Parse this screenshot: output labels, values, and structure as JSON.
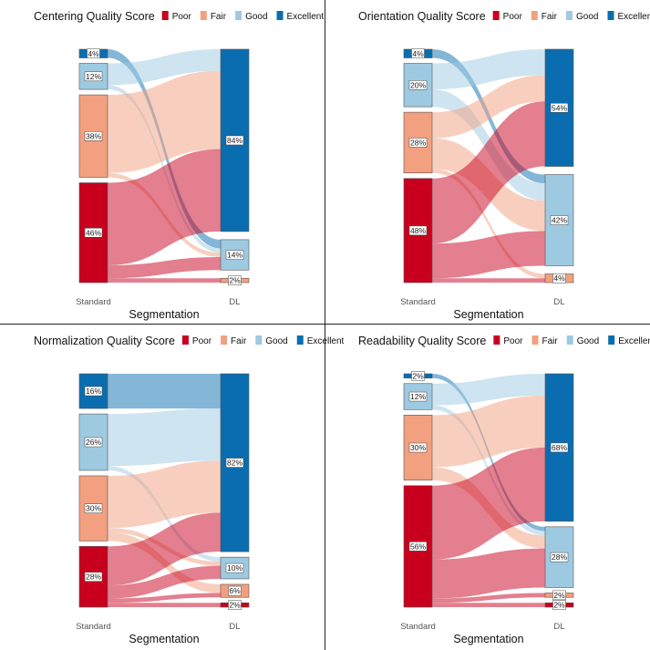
{
  "colors": {
    "Poor": "#c8001e",
    "Fair": "#f2a07f",
    "Good": "#9ecae1",
    "Excellent": "#0a6db0"
  },
  "chart_data": [
    {
      "type": "sankey",
      "title": "Centering Quality Score",
      "legend": [
        "Poor",
        "Fair",
        "Good",
        "Excellent"
      ],
      "left_axis_label": "Standard",
      "right_axis_label": "DL",
      "xlabel": "Segmentation",
      "left_nodes": [
        {
          "cat": "Excellent",
          "label": "4%"
        },
        {
          "cat": "Good",
          "label": "12%"
        },
        {
          "cat": "Fair",
          "label": "38%"
        },
        {
          "cat": "Poor",
          "label": "46%"
        }
      ],
      "right_nodes": [
        {
          "cat": "Excellent",
          "label": "84%"
        },
        {
          "cat": "Good",
          "label": "14%"
        },
        {
          "cat": "Fair",
          "label": "2%"
        }
      ],
      "links": [
        [
          "Excellent",
          "Good",
          4
        ],
        [
          "Good",
          "Excellent",
          10
        ],
        [
          "Good",
          "Good",
          2
        ],
        [
          "Fair",
          "Excellent",
          36
        ],
        [
          "Fair",
          "Good",
          2
        ],
        [
          "Poor",
          "Excellent",
          38
        ],
        [
          "Poor",
          "Good",
          6
        ],
        [
          "Poor",
          "Fair",
          2
        ]
      ]
    },
    {
      "type": "sankey",
      "title": "Orientation Quality Score",
      "legend": [
        "Poor",
        "Fair",
        "Good",
        "Excellent"
      ],
      "left_axis_label": "Standard",
      "right_axis_label": "DL",
      "xlabel": "Segmentation",
      "left_nodes": [
        {
          "cat": "Excellent",
          "label": "4%"
        },
        {
          "cat": "Good",
          "label": "20%"
        },
        {
          "cat": "Fair",
          "label": "28%"
        },
        {
          "cat": "Poor",
          "label": "48%"
        }
      ],
      "right_nodes": [
        {
          "cat": "Excellent",
          "label": "54%"
        },
        {
          "cat": "Good",
          "label": "42%"
        },
        {
          "cat": "Fair",
          "label": "4%"
        }
      ],
      "links": [
        [
          "Excellent",
          "Good",
          4
        ],
        [
          "Good",
          "Excellent",
          12
        ],
        [
          "Good",
          "Good",
          8
        ],
        [
          "Fair",
          "Excellent",
          12
        ],
        [
          "Fair",
          "Good",
          14
        ],
        [
          "Fair",
          "Fair",
          2
        ],
        [
          "Poor",
          "Excellent",
          30
        ],
        [
          "Poor",
          "Good",
          16
        ],
        [
          "Poor",
          "Fair",
          2
        ]
      ]
    },
    {
      "type": "sankey",
      "title": "Normalization Quality Score",
      "legend": [
        "Poor",
        "Fair",
        "Good",
        "Excellent"
      ],
      "left_axis_label": "Standard",
      "right_axis_label": "DL",
      "xlabel": "Segmentation",
      "left_nodes": [
        {
          "cat": "Excellent",
          "label": "16%"
        },
        {
          "cat": "Good",
          "label": "26%"
        },
        {
          "cat": "Fair",
          "label": "30%"
        },
        {
          "cat": "Poor",
          "label": "28%"
        }
      ],
      "right_nodes": [
        {
          "cat": "Excellent",
          "label": "82%"
        },
        {
          "cat": "Good",
          "label": "10%"
        },
        {
          "cat": "Fair",
          "label": "6%"
        },
        {
          "cat": "Poor",
          "label": "2%"
        }
      ],
      "links": [
        [
          "Excellent",
          "Excellent",
          16
        ],
        [
          "Good",
          "Excellent",
          24
        ],
        [
          "Good",
          "Good",
          2
        ],
        [
          "Fair",
          "Excellent",
          24
        ],
        [
          "Fair",
          "Good",
          2
        ],
        [
          "Fair",
          "Fair",
          4
        ],
        [
          "Poor",
          "Excellent",
          18
        ],
        [
          "Poor",
          "Good",
          6
        ],
        [
          "Poor",
          "Fair",
          2
        ],
        [
          "Poor",
          "Poor",
          2
        ]
      ]
    },
    {
      "type": "sankey",
      "title": "Readability Quality Score",
      "legend": [
        "Poor",
        "Fair",
        "Good",
        "Excellent"
      ],
      "left_axis_label": "Standard",
      "right_axis_label": "DL",
      "xlabel": "Segmentation",
      "left_nodes": [
        {
          "cat": "Excellent",
          "label": "2%"
        },
        {
          "cat": "Good",
          "label": "12%"
        },
        {
          "cat": "Fair",
          "label": "30%"
        },
        {
          "cat": "Poor",
          "label": "56%"
        }
      ],
      "right_nodes": [
        {
          "cat": "Excellent",
          "label": "68%"
        },
        {
          "cat": "Good",
          "label": "28%"
        },
        {
          "cat": "Fair",
          "label": "2%"
        },
        {
          "cat": "Poor",
          "label": "2%"
        }
      ],
      "links": [
        [
          "Excellent",
          "Good",
          2
        ],
        [
          "Good",
          "Excellent",
          10
        ],
        [
          "Good",
          "Good",
          2
        ],
        [
          "Fair",
          "Excellent",
          24
        ],
        [
          "Fair",
          "Good",
          6
        ],
        [
          "Poor",
          "Excellent",
          34
        ],
        [
          "Poor",
          "Good",
          18
        ],
        [
          "Poor",
          "Fair",
          2
        ],
        [
          "Poor",
          "Poor",
          2
        ]
      ]
    }
  ]
}
